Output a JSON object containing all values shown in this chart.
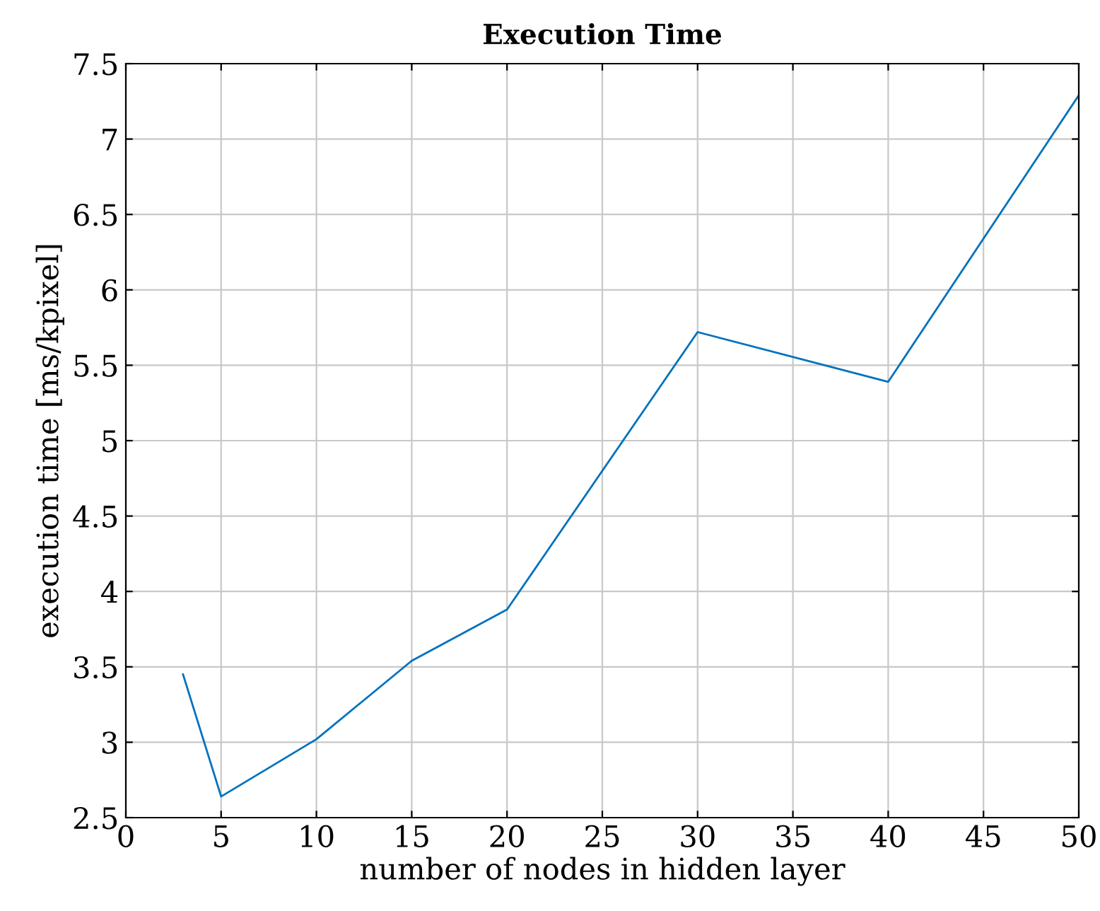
{
  "chart_data": {
    "type": "line",
    "title": "Execution Time",
    "xlabel": "number of nodes in hidden layer",
    "ylabel": "execution time [ms/kpixel]",
    "x": [
      3,
      5,
      10,
      15,
      20,
      30,
      40,
      50
    ],
    "series": [
      {
        "color": "#0072bd",
        "values": [
          3.45,
          2.64,
          3.02,
          3.54,
          3.88,
          5.72,
          5.39,
          7.29
        ]
      }
    ],
    "xlim": [
      0,
      50
    ],
    "xticks": [
      0,
      5,
      10,
      15,
      20,
      25,
      30,
      35,
      40,
      45,
      50
    ],
    "ylim": [
      2.5,
      7.5
    ],
    "yticks": [
      2.5,
      3,
      3.5,
      4,
      4.5,
      5,
      5.5,
      6,
      6.5,
      7,
      7.5
    ],
    "grid": true,
    "marker": "none",
    "line_style": "solid"
  }
}
